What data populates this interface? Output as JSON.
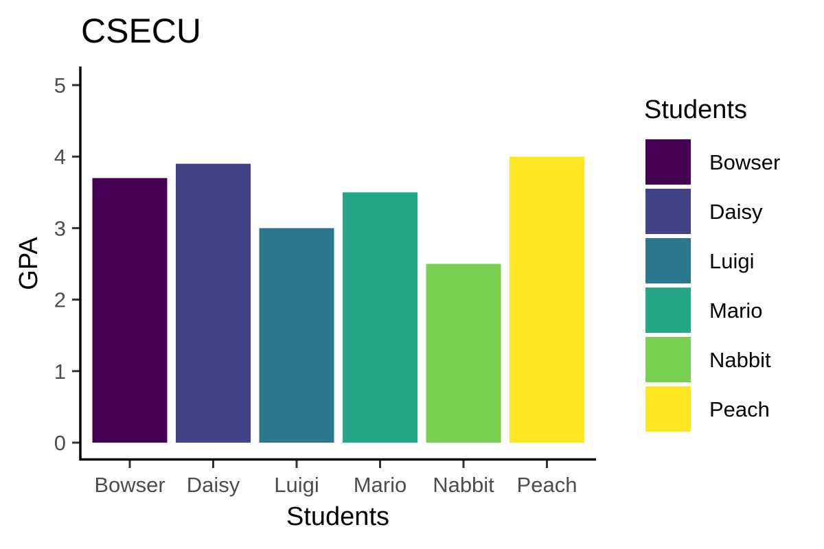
{
  "chart_data": {
    "type": "bar",
    "title": "CSECU",
    "xlabel": "Students",
    "ylabel": "GPA",
    "categories": [
      "Bowser",
      "Daisy",
      "Luigi",
      "Mario",
      "Nabbit",
      "Peach"
    ],
    "values": [
      3.7,
      3.9,
      3.0,
      3.5,
      2.5,
      4.0
    ],
    "colors": [
      "#440154",
      "#414487",
      "#2A788E",
      "#22A884",
      "#7AD151",
      "#FDE725"
    ],
    "ylim": [
      0,
      5
    ],
    "yticks": [
      0,
      1,
      2,
      3,
      4,
      5
    ],
    "grid": false,
    "legend": {
      "title": "Students",
      "placement": "right",
      "entries": [
        "Bowser",
        "Daisy",
        "Luigi",
        "Mario",
        "Nabbit",
        "Peach"
      ]
    }
  }
}
